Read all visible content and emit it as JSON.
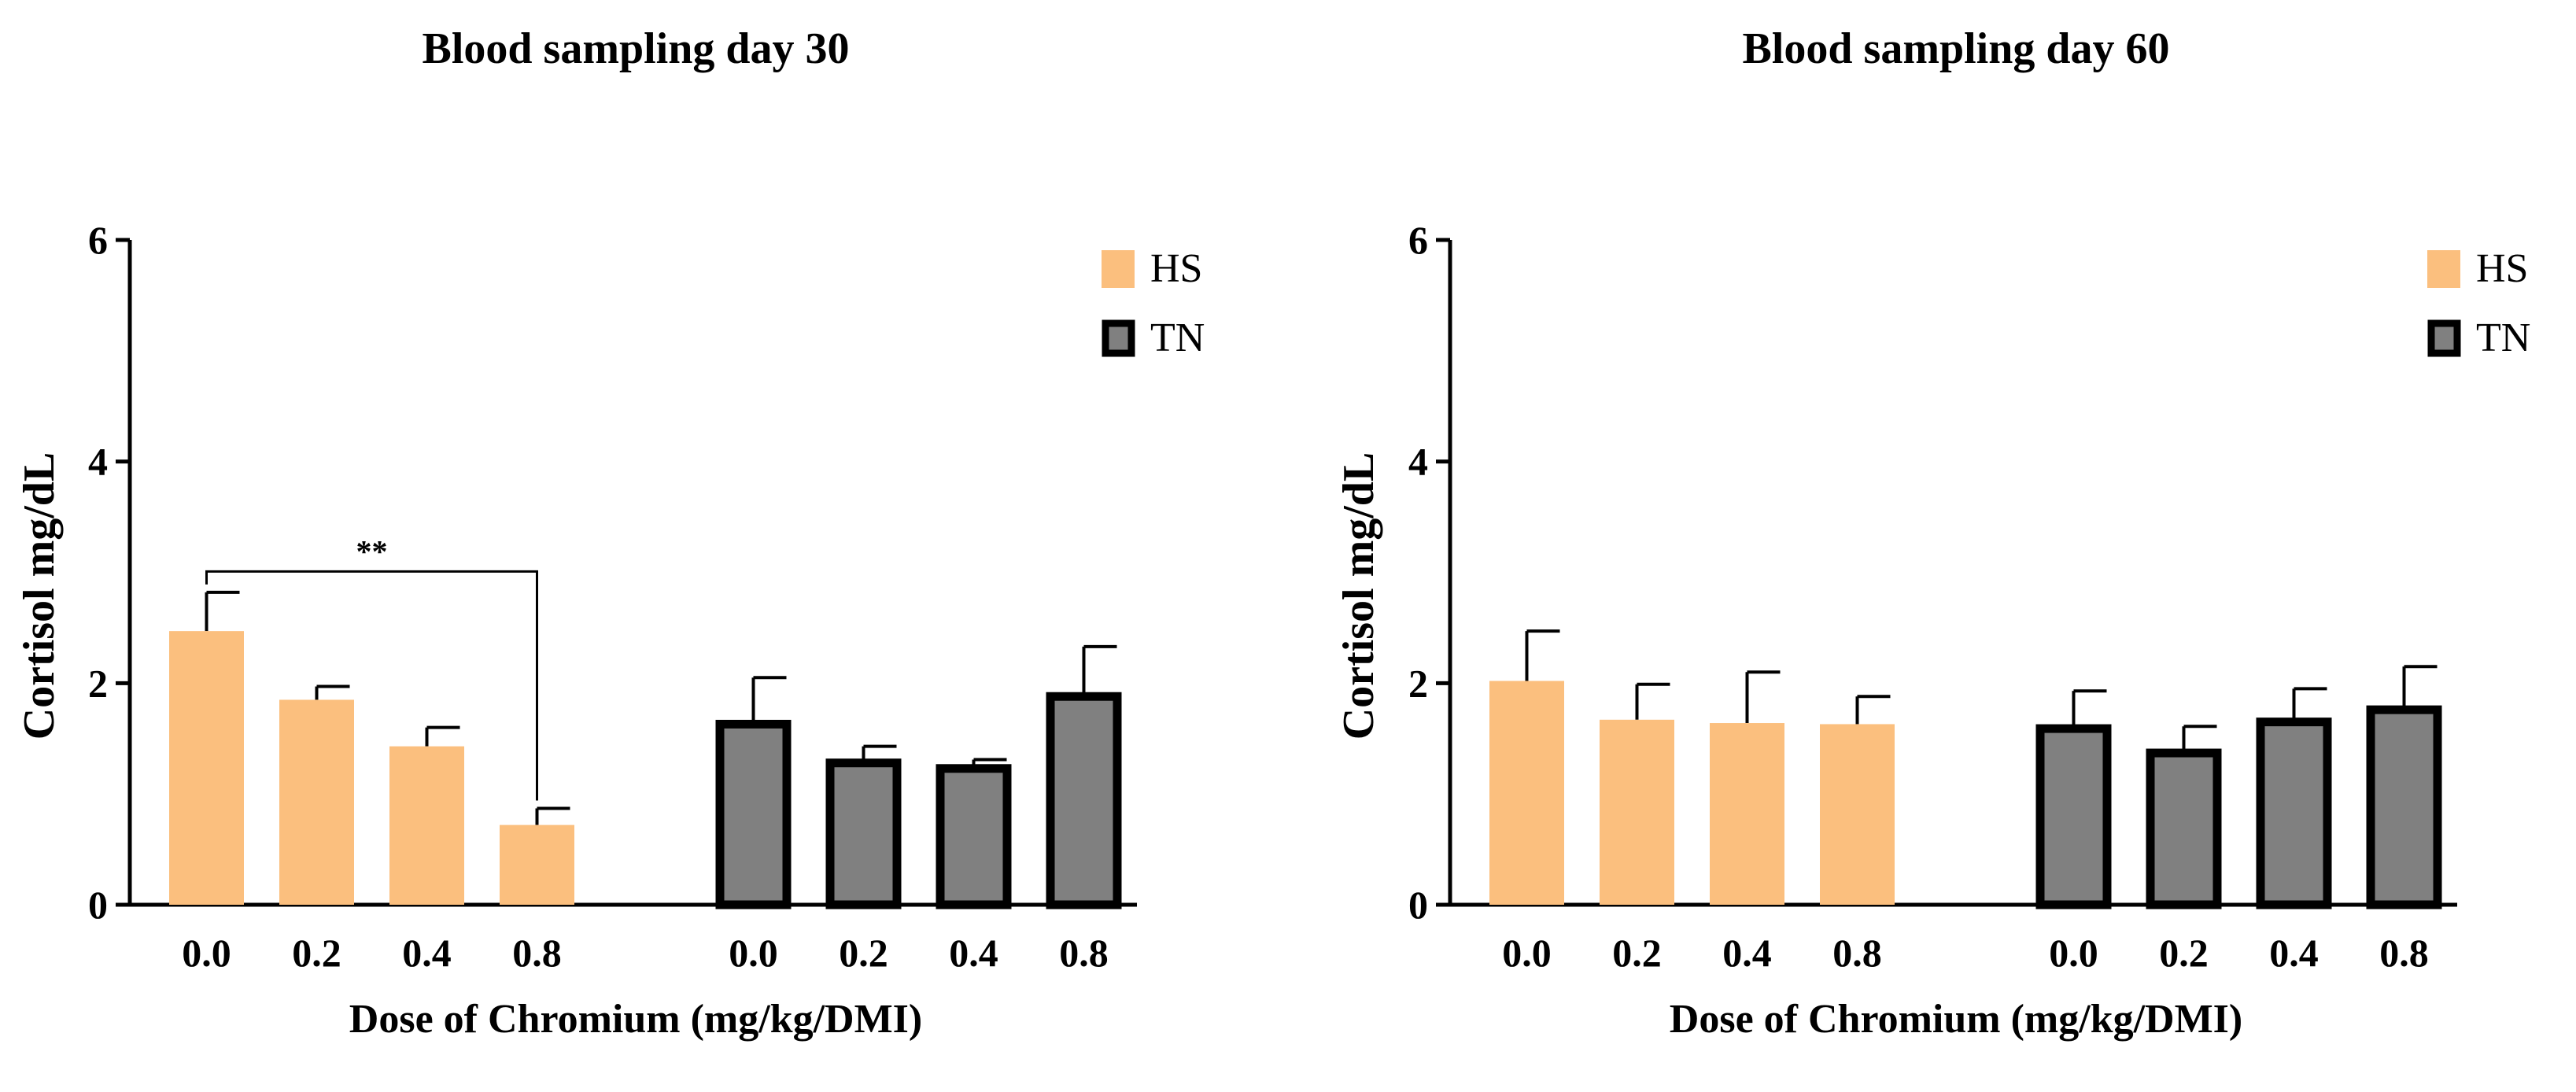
{
  "chart_data": [
    {
      "type": "bar",
      "title": "Blood sampling day 30",
      "xlabel": "Dose of Chromium (mg/kg/DMI)",
      "ylabel": "Cortisol mg/dL",
      "ylim": [
        0,
        6
      ],
      "yticks": [
        "0",
        "2",
        "4",
        "6"
      ],
      "categories": [
        "0.0",
        "0.2",
        "0.4",
        "0.8"
      ],
      "legend_position": "top-right",
      "series": [
        {
          "name": "HS",
          "color": "#FBBF7E",
          "values": [
            2.47,
            1.85,
            1.43,
            0.72
          ],
          "errors": [
            0.35,
            0.12,
            0.17,
            0.15
          ]
        },
        {
          "name": "TN",
          "color": "#808080",
          "values": [
            1.63,
            1.28,
            1.23,
            1.88
          ],
          "errors": [
            0.42,
            0.15,
            0.08,
            0.45
          ]
        }
      ],
      "annotations": [
        {
          "text": "**",
          "from": {
            "series": 0,
            "index": 0
          },
          "to": {
            "series": 0,
            "index": 3
          },
          "level": 3.15
        }
      ]
    },
    {
      "type": "bar",
      "title": "Blood sampling day 60",
      "xlabel": "Dose of Chromium (mg/kg/DMI)",
      "ylabel": "Cortisol mg/dL",
      "ylim": [
        0,
        6
      ],
      "yticks": [
        "0",
        "2",
        "4",
        "6"
      ],
      "categories": [
        "0.0",
        "0.2",
        "0.4",
        "0.8"
      ],
      "legend_position": "top-right",
      "series": [
        {
          "name": "HS",
          "color": "#FBBF7E",
          "values": [
            2.02,
            1.67,
            1.64,
            1.63
          ],
          "errors": [
            0.45,
            0.32,
            0.46,
            0.25
          ]
        },
        {
          "name": "TN",
          "color": "#808080",
          "values": [
            1.59,
            1.37,
            1.65,
            1.76
          ],
          "errors": [
            0.34,
            0.24,
            0.3,
            0.39
          ]
        }
      ],
      "annotations": []
    }
  ]
}
